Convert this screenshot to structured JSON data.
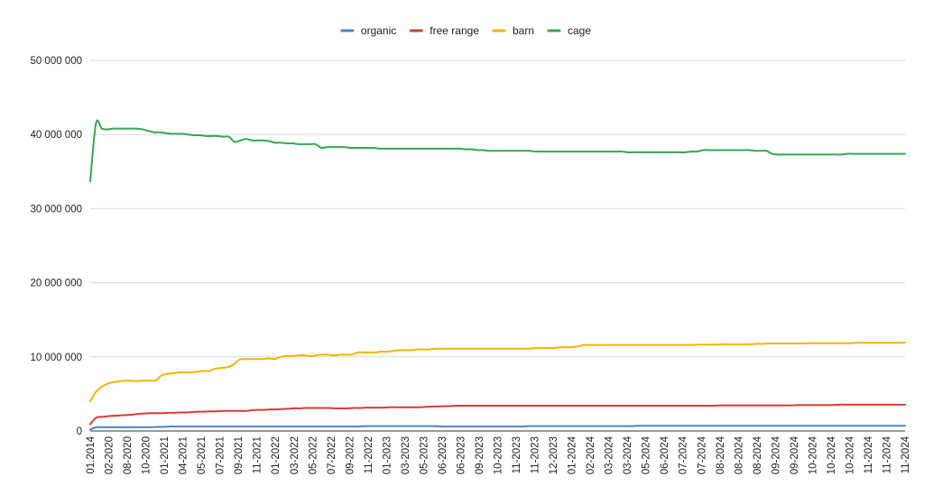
{
  "chart_data": {
    "type": "line",
    "title": "",
    "xlabel": "",
    "ylabel": "",
    "ylim": [
      0,
      50000000
    ],
    "y_ticks": [
      0,
      10000000,
      20000000,
      30000000,
      40000000,
      50000000
    ],
    "y_tick_labels": [
      "0",
      "10 000 000",
      "20 000 000",
      "30 000 000",
      "40 000 000",
      "50 000 000"
    ],
    "grid": true,
    "legend_position": "top-center",
    "x_tick_labels": [
      "01.2014",
      "02-2020",
      "08-2020",
      "10-2020",
      "01-2021",
      "04-2021",
      "05-2021",
      "07-2021",
      "09-2021",
      "11-2021",
      "01-2022",
      "03-2022",
      "05-2022",
      "07-2022",
      "09-2022",
      "11-2022",
      "01-2023",
      "03-2023",
      "05-2023",
      "06-2023",
      "06-2023",
      "09-2023",
      "10-2023",
      "11-2023",
      "11-2023",
      "12-2023",
      "01-2024",
      "02-2024",
      "03-2024",
      "03-2024",
      "05-2024",
      "06-2024",
      "07-2024",
      "07-2024",
      "08-2024",
      "08-2024",
      "08-2024",
      "09-2024",
      "09-2024",
      "10-2024",
      "10-2024",
      "10-2024",
      "11-2024",
      "11-2024",
      "11-2024"
    ],
    "series": [
      {
        "name": "organic",
        "color": "#4a86c8",
        "values": [
          200000,
          500000,
          500000,
          500000,
          500000,
          500000,
          500000,
          500000,
          500000,
          500000,
          500000,
          550000,
          550000,
          600000,
          600000,
          600000,
          600000,
          600000,
          600000,
          600000,
          600000,
          600000,
          600000,
          600000,
          600000,
          600000,
          600000,
          600000,
          600000,
          600000,
          600000,
          600000,
          600000,
          600000,
          600000,
          600000,
          600000,
          600000,
          600000,
          600000,
          600000,
          600000,
          600000,
          600000,
          600000,
          650000,
          650000,
          650000,
          650000,
          650000,
          650000,
          650000,
          650000,
          650000,
          650000,
          650000,
          650000,
          650000,
          600000,
          600000,
          600000,
          600000,
          600000,
          600000,
          600000,
          600000,
          600000,
          600000,
          600000,
          600000,
          600000,
          600000,
          650000,
          650000,
          650000,
          650000,
          650000,
          650000,
          650000,
          650000,
          650000,
          650000,
          650000,
          650000,
          650000,
          650000,
          650000,
          650000,
          650000,
          650000,
          700000,
          700000,
          700000,
          700000,
          700000,
          700000,
          700000,
          700000,
          700000,
          700000,
          700000,
          700000,
          700000,
          700000,
          700000,
          700000,
          700000,
          700000,
          700000,
          700000,
          700000,
          700000,
          700000,
          700000,
          700000,
          700000,
          700000,
          700000,
          700000,
          700000,
          700000,
          700000,
          700000,
          700000,
          700000,
          700000,
          700000,
          700000,
          700000,
          700000,
          700000,
          700000,
          700000,
          700000,
          700000
        ]
      },
      {
        "name": "free range",
        "color": "#dc3b2e",
        "values": [
          900000,
          1800000,
          1900000,
          2000000,
          2050000,
          2100000,
          2150000,
          2200000,
          2300000,
          2350000,
          2400000,
          2400000,
          2400000,
          2450000,
          2450000,
          2500000,
          2500000,
          2550000,
          2600000,
          2600000,
          2650000,
          2650000,
          2700000,
          2700000,
          2700000,
          2700000,
          2700000,
          2800000,
          2850000,
          2850000,
          2900000,
          2900000,
          2950000,
          3000000,
          3050000,
          3050000,
          3100000,
          3100000,
          3100000,
          3100000,
          3100000,
          3050000,
          3050000,
          3050000,
          3100000,
          3100000,
          3150000,
          3150000,
          3150000,
          3150000,
          3200000,
          3200000,
          3200000,
          3200000,
          3200000,
          3200000,
          3250000,
          3300000,
          3300000,
          3350000,
          3350000,
          3400000,
          3400000,
          3400000,
          3400000,
          3400000,
          3400000,
          3400000,
          3400000,
          3400000,
          3400000,
          3400000,
          3400000,
          3400000,
          3400000,
          3400000,
          3400000,
          3400000,
          3400000,
          3400000,
          3400000,
          3400000,
          3400000,
          3400000,
          3400000,
          3400000,
          3400000,
          3400000,
          3400000,
          3400000,
          3400000,
          3400000,
          3400000,
          3400000,
          3400000,
          3400000,
          3400000,
          3400000,
          3400000,
          3400000,
          3400000,
          3400000,
          3400000,
          3400000,
          3400000,
          3450000,
          3450000,
          3450000,
          3450000,
          3450000,
          3450000,
          3450000,
          3450000,
          3450000,
          3450000,
          3450000,
          3450000,
          3450000,
          3500000,
          3500000,
          3500000,
          3500000,
          3500000,
          3500000,
          3500000,
          3550000,
          3550000,
          3550000,
          3550000,
          3550000,
          3550000,
          3550000,
          3550000,
          3550000,
          3550000,
          3550000,
          3550000
        ]
      },
      {
        "name": "barn",
        "color": "#f4b400",
        "values": [
          4000000,
          5300000,
          6000000,
          6400000,
          6600000,
          6700000,
          6800000,
          6750000,
          6750000,
          6800000,
          6800000,
          6800000,
          7500000,
          7700000,
          7800000,
          7900000,
          7900000,
          7900000,
          8000000,
          8100000,
          8100000,
          8400000,
          8500000,
          8600000,
          8900000,
          9600000,
          9700000,
          9700000,
          9700000,
          9700000,
          9800000,
          9700000,
          10000000,
          10100000,
          10100000,
          10200000,
          10200000,
          10100000,
          10200000,
          10300000,
          10300000,
          10200000,
          10300000,
          10300000,
          10300000,
          10600000,
          10600000,
          10600000,
          10600000,
          10700000,
          10700000,
          10800000,
          10900000,
          10900000,
          10900000,
          11000000,
          11000000,
          11000000,
          11100000,
          11100000,
          11100000,
          11100000,
          11100000,
          11100000,
          11100000,
          11100000,
          11100000,
          11100000,
          11100000,
          11100000,
          11100000,
          11100000,
          11100000,
          11100000,
          11100000,
          11200000,
          11200000,
          11200000,
          11200000,
          11300000,
          11300000,
          11300000,
          11400000,
          11600000,
          11600000,
          11600000,
          11600000,
          11600000,
          11600000,
          11600000,
          11600000,
          11600000,
          11600000,
          11600000,
          11600000,
          11600000,
          11600000,
          11600000,
          11600000,
          11600000,
          11600000,
          11600000,
          11650000,
          11650000,
          11650000,
          11650000,
          11700000,
          11700000,
          11700000,
          11700000,
          11700000,
          11700000,
          11750000,
          11750000,
          11800000,
          11800000,
          11800000,
          11800000,
          11800000,
          11800000,
          11800000,
          11850000,
          11850000,
          11850000,
          11850000,
          11850000,
          11850000,
          11850000,
          11850000,
          11900000,
          11900000,
          11900000,
          11900000,
          11900000,
          11900000,
          11900000,
          11900000,
          11900000
        ]
      },
      {
        "name": "cage",
        "color": "#34a853",
        "values": [
          33700000,
          41500000,
          40800000,
          40700000,
          40800000,
          40800000,
          40800000,
          40800000,
          40800000,
          40700000,
          40500000,
          40300000,
          40300000,
          40200000,
          40100000,
          40100000,
          40100000,
          40000000,
          39900000,
          39900000,
          39800000,
          39800000,
          39800000,
          39700000,
          39700000,
          39000000,
          39200000,
          39400000,
          39200000,
          39200000,
          39200000,
          39100000,
          38900000,
          38900000,
          38800000,
          38800000,
          38700000,
          38700000,
          38700000,
          38700000,
          38200000,
          38300000,
          38300000,
          38300000,
          38300000,
          38200000,
          38200000,
          38200000,
          38200000,
          38200000,
          38100000,
          38100000,
          38100000,
          38100000,
          38100000,
          38100000,
          38100000,
          38100000,
          38100000,
          38100000,
          38100000,
          38100000,
          38100000,
          38100000,
          38100000,
          38000000,
          38000000,
          37900000,
          37900000,
          37800000,
          37800000,
          37800000,
          37800000,
          37800000,
          37800000,
          37800000,
          37800000,
          37700000,
          37700000,
          37700000,
          37700000,
          37700000,
          37700000,
          37700000,
          37700000,
          37700000,
          37700000,
          37700000,
          37700000,
          37700000,
          37700000,
          37700000,
          37700000,
          37600000,
          37600000,
          37600000,
          37600000,
          37600000,
          37600000,
          37600000,
          37600000,
          37600000,
          37600000,
          37600000,
          37700000,
          37700000,
          37900000,
          37900000,
          37900000,
          37900000,
          37900000,
          37900000,
          37900000,
          37900000,
          37900000,
          37800000,
          37800000,
          37800000,
          37400000,
          37300000,
          37300000,
          37300000,
          37300000,
          37300000,
          37300000,
          37300000,
          37300000,
          37300000,
          37300000,
          37300000,
          37300000,
          37400000,
          37400000,
          37400000,
          37400000,
          37400000,
          37400000,
          37400000,
          37400000,
          37400000,
          37400000,
          37400000
        ]
      }
    ]
  }
}
